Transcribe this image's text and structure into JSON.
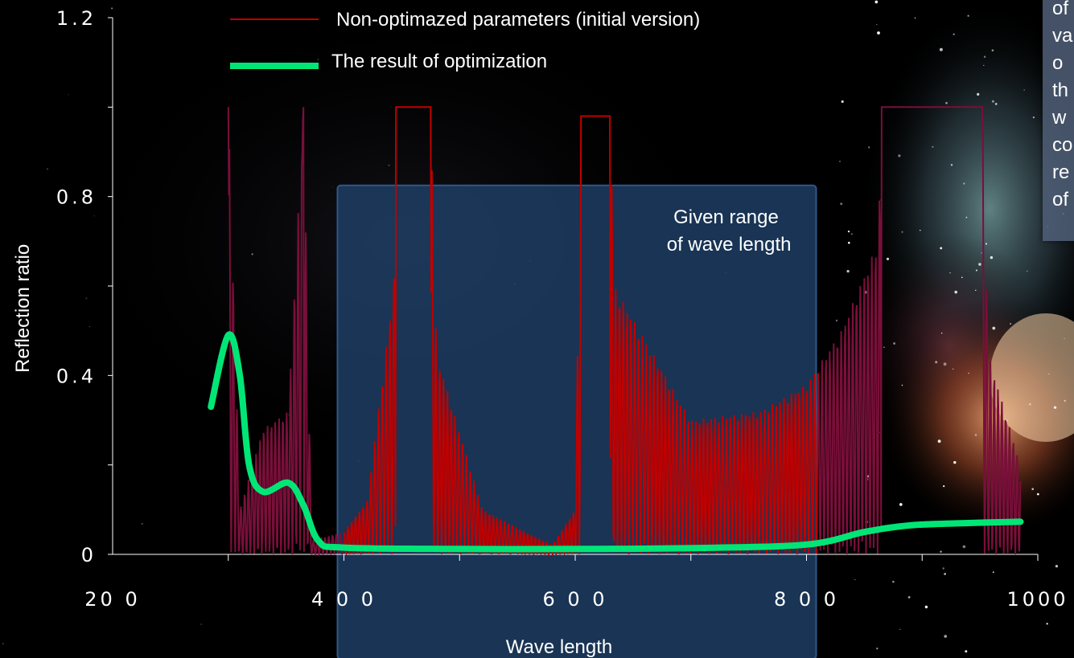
{
  "chart_data": {
    "type": "line",
    "title": "",
    "xlabel": "Wave length",
    "ylabel": "Reflection  ratio",
    "xlim": [
      200,
      1000
    ],
    "ylim": [
      0,
      1.2
    ],
    "x_ticks": [
      200,
      400,
      600,
      800,
      1000
    ],
    "x_tick_labels": [
      "20 0",
      "4 0 0",
      "6 0 0",
      "8 0 0",
      "1000"
    ],
    "y_ticks": [
      0,
      0.4,
      0.8,
      1.2
    ],
    "y_tick_labels": [
      "0",
      "0.4",
      "0.8",
      "1.2"
    ],
    "grid": false,
    "legend": "top-left",
    "highlight_range": {
      "x": [
        400,
        800
      ],
      "label_lines": [
        "Given range",
        "of wave length"
      ]
    },
    "series": [
      {
        "name": "Non-optimazed parameters (initial version)",
        "color": "#c00000",
        "outside_color": "#7a0f3a",
        "style": "thin oscillating",
        "envelope": [
          {
            "x": 300,
            "y": 1.0
          },
          {
            "x": 310,
            "y": 0.1
          },
          {
            "x": 330,
            "y": 0.28
          },
          {
            "x": 352,
            "y": 0.32
          },
          {
            "x": 365,
            "y": 1.0
          },
          {
            "x": 372,
            "y": 0.03
          },
          {
            "x": 400,
            "y": 0.05
          },
          {
            "x": 420,
            "y": 0.12
          },
          {
            "x": 443,
            "y": 0.6
          },
          {
            "x": 445,
            "y": 1.0
          },
          {
            "x": 475,
            "y": 1.0
          },
          {
            "x": 480,
            "y": 0.45
          },
          {
            "x": 520,
            "y": 0.1
          },
          {
            "x": 580,
            "y": 0.02
          },
          {
            "x": 600,
            "y": 0.1
          },
          {
            "x": 605,
            "y": 0.98
          },
          {
            "x": 630,
            "y": 0.98
          },
          {
            "x": 634,
            "y": 0.6
          },
          {
            "x": 700,
            "y": 0.3
          },
          {
            "x": 760,
            "y": 0.32
          },
          {
            "x": 800,
            "y": 0.38
          },
          {
            "x": 830,
            "y": 0.5
          },
          {
            "x": 862,
            "y": 0.7
          },
          {
            "x": 865,
            "y": 1.0
          },
          {
            "x": 952,
            "y": 1.0
          },
          {
            "x": 957,
            "y": 0.45
          },
          {
            "x": 985,
            "y": 0.2
          }
        ]
      },
      {
        "name": "The result of optimization",
        "color": "#00e676",
        "style": "thick smooth",
        "points": [
          {
            "x": 285,
            "y": 0.33
          },
          {
            "x": 300,
            "y": 0.49
          },
          {
            "x": 310,
            "y": 0.4
          },
          {
            "x": 318,
            "y": 0.2
          },
          {
            "x": 330,
            "y": 0.14
          },
          {
            "x": 352,
            "y": 0.16
          },
          {
            "x": 365,
            "y": 0.11
          },
          {
            "x": 378,
            "y": 0.03
          },
          {
            "x": 400,
            "y": 0.015
          },
          {
            "x": 500,
            "y": 0.012
          },
          {
            "x": 600,
            "y": 0.012
          },
          {
            "x": 700,
            "y": 0.014
          },
          {
            "x": 800,
            "y": 0.022
          },
          {
            "x": 850,
            "y": 0.05
          },
          {
            "x": 890,
            "y": 0.065
          },
          {
            "x": 940,
            "y": 0.07
          },
          {
            "x": 985,
            "y": 0.073
          }
        ]
      }
    ]
  },
  "callout": {
    "lines": [
      "of",
      "va",
      "o",
      "th",
      "w",
      "co",
      "re",
      "of"
    ]
  }
}
